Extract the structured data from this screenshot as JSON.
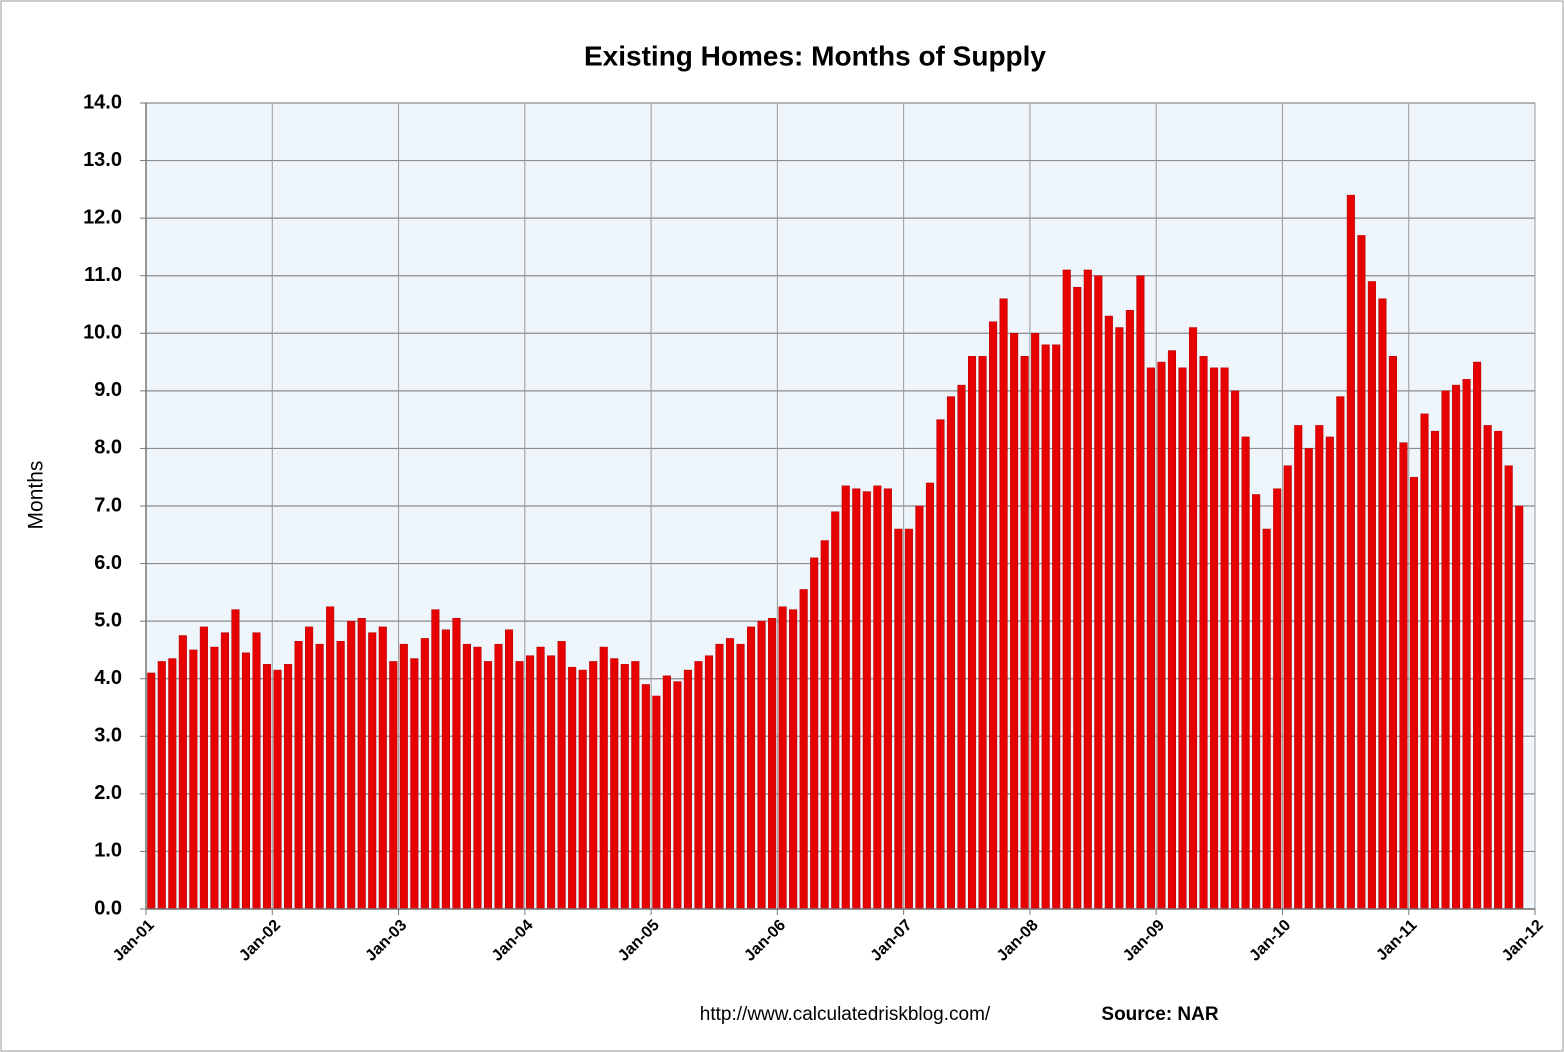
{
  "chart_data": {
    "type": "bar",
    "title": "Existing Homes: Months of Supply",
    "ylabel": "Months",
    "source_url": "http://www.calculatedriskblog.com/",
    "source": "Source: NAR",
    "color": "#e60000",
    "grid": true,
    "categories": [
      "Jan-01",
      null,
      null,
      null,
      null,
      null,
      null,
      null,
      null,
      null,
      null,
      null,
      "Jan-02",
      null,
      null,
      null,
      null,
      null,
      null,
      null,
      null,
      null,
      null,
      null,
      "Jan-03",
      null,
      null,
      null,
      null,
      null,
      null,
      null,
      null,
      null,
      null,
      null,
      "Jan-04",
      null,
      null,
      null,
      null,
      null,
      null,
      null,
      null,
      null,
      null,
      null,
      "Jan-05",
      null,
      null,
      null,
      null,
      null,
      null,
      null,
      null,
      null,
      null,
      null,
      "Jan-06",
      null,
      null,
      null,
      null,
      null,
      null,
      null,
      null,
      null,
      null,
      null,
      "Jan-07",
      null,
      null,
      null,
      null,
      null,
      null,
      null,
      null,
      null,
      null,
      null,
      "Jan-08",
      null,
      null,
      null,
      null,
      null,
      null,
      null,
      null,
      null,
      null,
      null,
      "Jan-09",
      null,
      null,
      null,
      null,
      null,
      null,
      null,
      null,
      null,
      null,
      null,
      "Jan-10",
      null,
      null,
      null,
      null,
      null,
      null,
      null,
      null,
      null,
      null,
      null,
      "Jan-11",
      null,
      null,
      null,
      null,
      null,
      null,
      null,
      null,
      null,
      null,
      null,
      "Jan-12"
    ],
    "values": [
      4.1,
      4.3,
      4.35,
      4.75,
      4.5,
      4.9,
      4.55,
      4.8,
      5.2,
      4.45,
      4.8,
      4.25,
      4.15,
      4.25,
      4.65,
      4.9,
      4.6,
      5.25,
      4.65,
      5.0,
      5.05,
      4.8,
      4.9,
      4.3,
      4.6,
      4.35,
      4.7,
      5.2,
      4.85,
      5.05,
      4.6,
      4.55,
      4.3,
      4.6,
      4.85,
      4.3,
      4.4,
      4.55,
      4.4,
      4.65,
      4.2,
      4.15,
      4.3,
      4.55,
      4.35,
      4.25,
      4.3,
      3.9,
      3.7,
      4.05,
      3.95,
      4.15,
      4.3,
      4.4,
      4.6,
      4.7,
      4.6,
      4.9,
      5.0,
      5.05,
      5.25,
      5.2,
      5.55,
      6.1,
      6.4,
      6.9,
      7.35,
      7.3,
      7.25,
      7.35,
      7.3,
      6.6,
      6.6,
      7.0,
      7.4,
      8.5,
      8.9,
      9.1,
      9.6,
      9.6,
      10.2,
      10.6,
      10.0,
      9.6,
      10.0,
      9.8,
      9.8,
      11.1,
      10.8,
      11.1,
      11.0,
      10.3,
      10.1,
      10.4,
      11.0,
      9.4,
      9.5,
      9.7,
      9.4,
      10.1,
      9.6,
      9.4,
      9.4,
      9.0,
      8.2,
      7.2,
      6.6,
      7.3,
      7.7,
      8.4,
      8.0,
      8.4,
      8.2,
      8.9,
      12.4,
      11.7,
      10.9,
      10.6,
      9.6,
      8.1,
      7.5,
      8.6,
      8.3,
      9.0,
      9.1,
      9.2,
      9.5,
      8.4,
      8.3,
      7.7,
      7.0,
      null,
      null
    ],
    "ylim": [
      0,
      14
    ],
    "yticks": [
      {
        "value": 0,
        "label": "0.0"
      },
      {
        "value": 1,
        "label": "1.0"
      },
      {
        "value": 2,
        "label": "2.0"
      },
      {
        "value": 3,
        "label": "3.0"
      },
      {
        "value": 4,
        "label": "4.0"
      },
      {
        "value": 5,
        "label": "5.0"
      },
      {
        "value": 6,
        "label": "6.0"
      },
      {
        "value": 7,
        "label": "7.0"
      },
      {
        "value": 8,
        "label": "8.0"
      },
      {
        "value": 9,
        "label": "9.0"
      },
      {
        "value": 10,
        "label": "10.0"
      },
      {
        "value": 11,
        "label": "11.0"
      },
      {
        "value": 12,
        "label": "12.0"
      },
      {
        "value": 13,
        "label": "13.0"
      },
      {
        "value": 14,
        "label": "14.0"
      }
    ]
  }
}
